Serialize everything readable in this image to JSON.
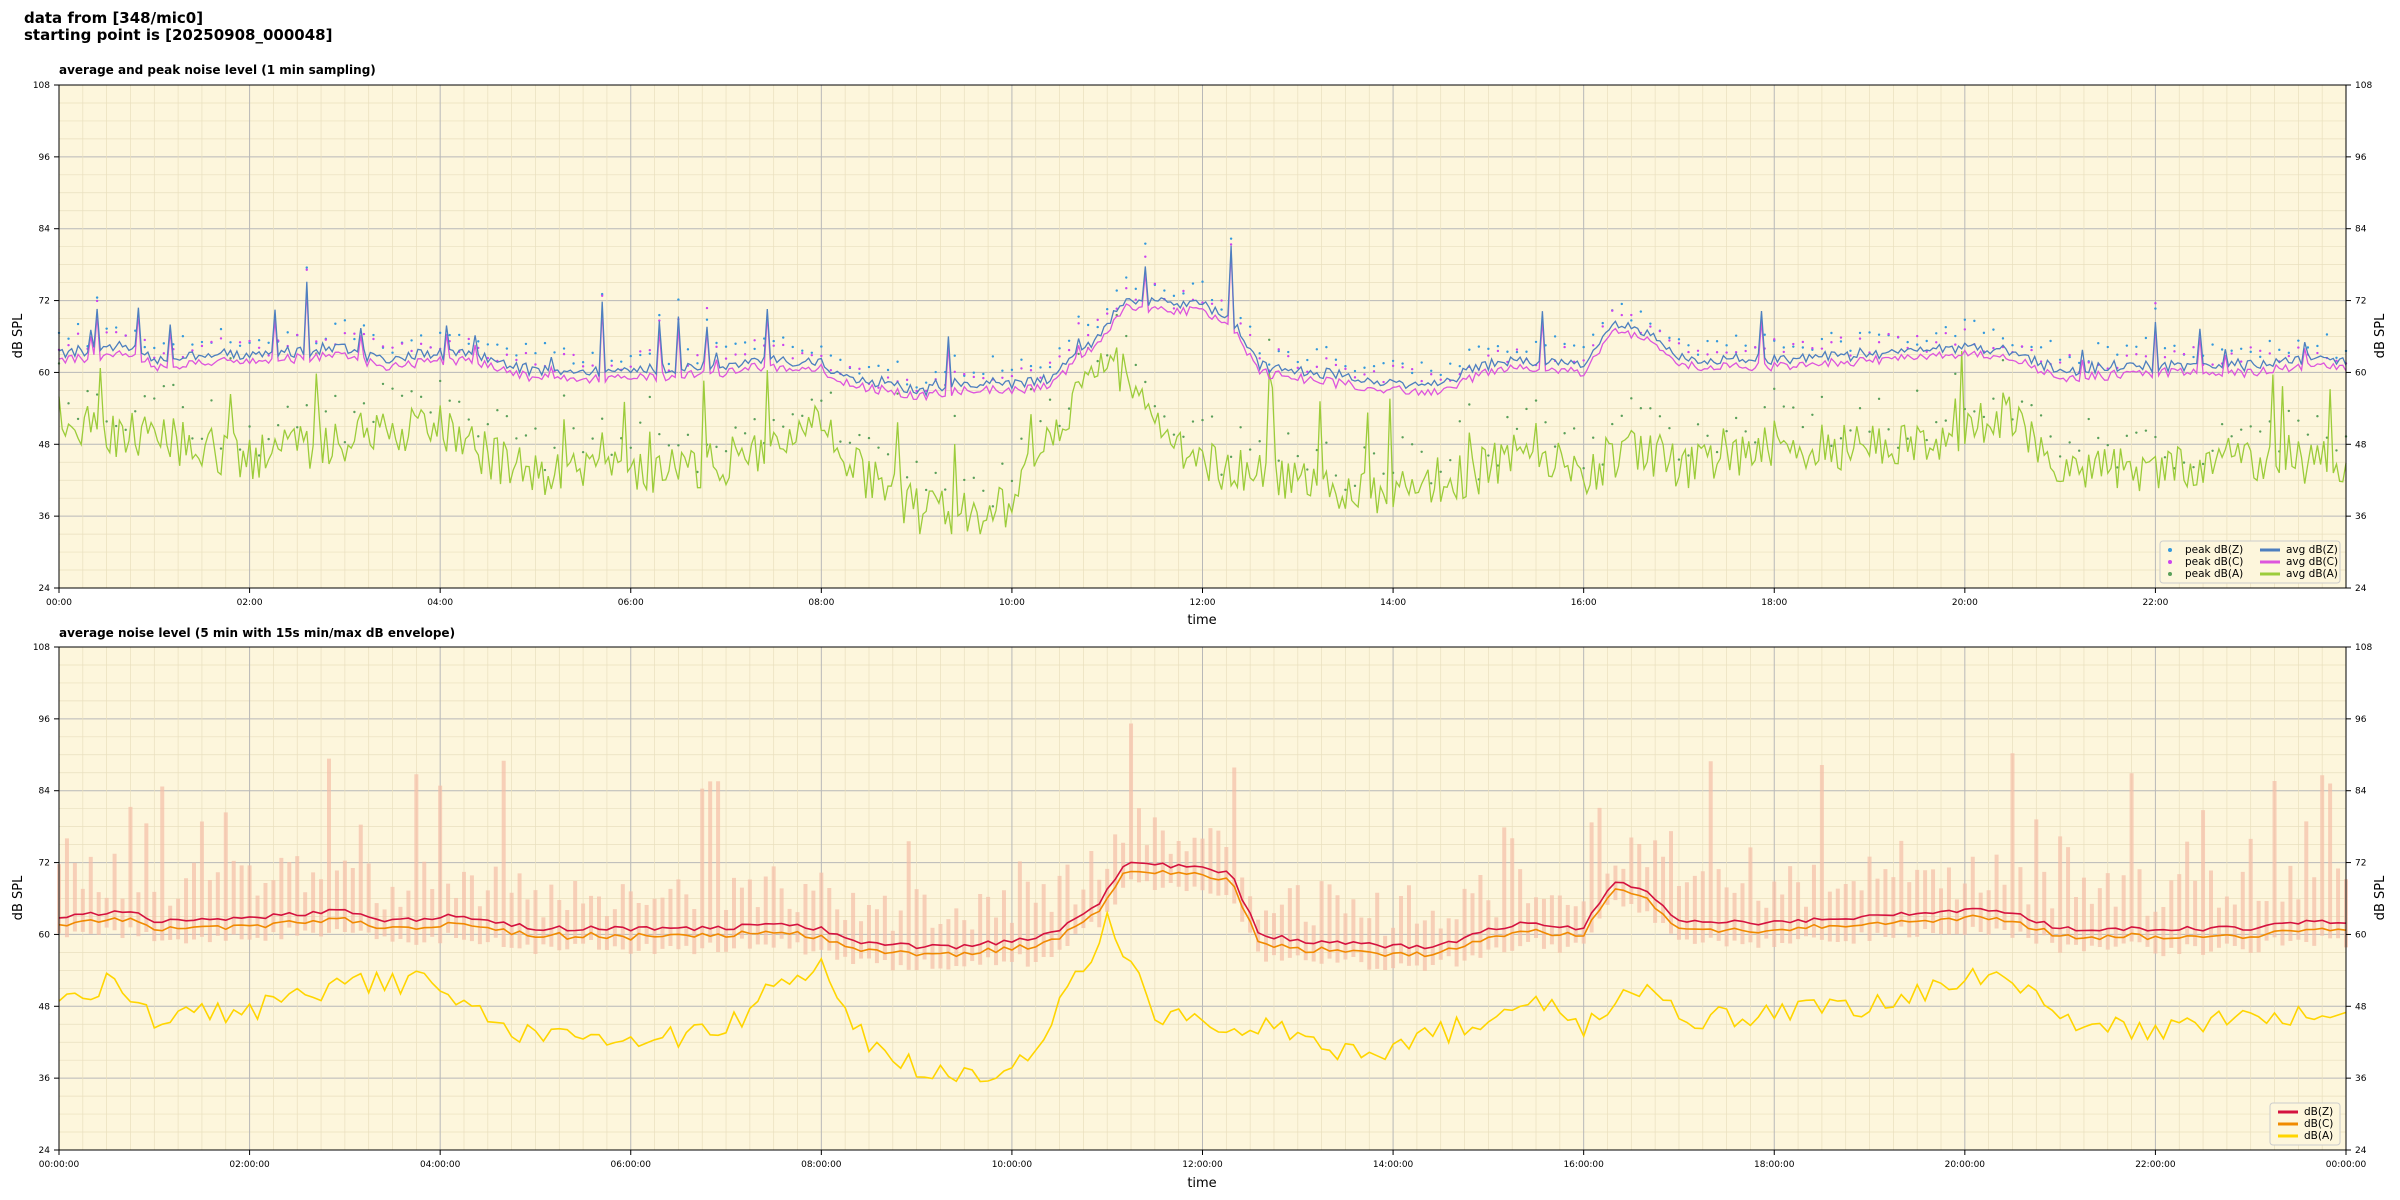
{
  "header": {
    "line1": "data from [348/mic0]",
    "line2": "starting point is [20250908_000048]"
  },
  "chart_data": [
    {
      "type": "line",
      "title": "average and peak noise level (1 min sampling)",
      "xlabel": "time",
      "ylabel": "dB SPL",
      "xlim_hours": [
        0,
        24
      ],
      "ylim": [
        24,
        108
      ],
      "yticks": [
        24,
        36,
        48,
        60,
        72,
        84,
        96,
        108
      ],
      "xtick_labels": [
        "00:00",
        "02:00",
        "04:00",
        "06:00",
        "08:00",
        "10:00",
        "12:00",
        "14:00",
        "16:00",
        "18:00",
        "20:00",
        "22:00"
      ],
      "grid": true,
      "legend_position": "bottom-right",
      "colors": {
        "background": "#fdf6dc",
        "Z": "#4d7fbf",
        "C": "#dd55dd",
        "A": "#9ccc3a",
        "peakZ": "#3399dd",
        "peakC": "#cc44ee",
        "peakA": "#5aa05a"
      },
      "series": [
        {
          "name": "avg dB(Z)",
          "kind": "line",
          "color": "#4d7fbf"
        },
        {
          "name": "avg dB(C)",
          "kind": "line",
          "color": "#dd55dd"
        },
        {
          "name": "avg dB(A)",
          "kind": "line",
          "color": "#9ccc3a"
        },
        {
          "name": "peak dB(Z)",
          "kind": "scatter",
          "color": "#3399dd"
        },
        {
          "name": "peak dB(C)",
          "kind": "scatter",
          "color": "#cc44ee"
        },
        {
          "name": "peak dB(A)",
          "kind": "scatter",
          "color": "#5aa05a"
        }
      ],
      "profile_c_hours": [
        0,
        0.8,
        1.0,
        2.0,
        2.2,
        3.0,
        3.4,
        4.0,
        4.3,
        5.0,
        6.0,
        7.0,
        7.4,
        8.0,
        8.3,
        9.0,
        9.5,
        10.0,
        10.4,
        10.9,
        11.2,
        12.0,
        12.3,
        12.6,
        13.0,
        14.0,
        14.5,
        15.0,
        15.5,
        16.0,
        16.3,
        16.7,
        17.0,
        18.0,
        19.0,
        20.0,
        20.4,
        21.0,
        22.0,
        23.0,
        23.5,
        24.0
      ],
      "profile_c_values": [
        62,
        63,
        61,
        62,
        62,
        63,
        61,
        62,
        62,
        59,
        59,
        60,
        61,
        60,
        58,
        56,
        57,
        57,
        58,
        65,
        71,
        70,
        68,
        60,
        59,
        57,
        57,
        60,
        61,
        60,
        67,
        66,
        61,
        61,
        62,
        63,
        63,
        59,
        60,
        60,
        61,
        61
      ],
      "profile_a_hours": [
        0,
        0.5,
        1.0,
        2.0,
        3.0,
        4.0,
        4.5,
        5.0,
        6.0,
        7.0,
        7.5,
        8.0,
        8.5,
        9.0,
        9.5,
        10.0,
        10.5,
        11.0,
        11.5,
        12.0,
        12.5,
        13.0,
        13.5,
        14.0,
        15.0,
        15.5,
        16.0,
        16.5,
        17.0,
        18.0,
        19.0,
        20.0,
        20.4,
        21.0,
        22.0,
        23.0,
        24.0
      ],
      "profile_a_values": [
        52,
        50,
        49,
        46,
        49,
        51,
        46,
        43,
        43,
        45,
        48,
        52,
        42,
        37,
        36,
        38,
        52,
        64,
        50,
        45,
        43,
        42,
        40,
        40,
        44,
        48,
        43,
        48,
        44,
        48,
        47,
        50,
        53,
        45,
        44,
        46,
        45
      ]
    },
    {
      "type": "line",
      "title": "average noise level (5 min with 15s min/max dB envelope)",
      "xlabel": "time",
      "ylabel": "dB SPL",
      "xlim_hours": [
        0,
        24
      ],
      "ylim": [
        24,
        108
      ],
      "yticks": [
        24,
        36,
        48,
        60,
        72,
        84,
        96,
        108
      ],
      "xtick_labels": [
        "00:00:00",
        "02:00:00",
        "04:00:00",
        "06:00:00",
        "08:00:00",
        "10:00:00",
        "12:00:00",
        "14:00:00",
        "16:00:00",
        "18:00:00",
        "20:00:00",
        "22:00:00",
        "00:00:00"
      ],
      "grid": true,
      "legend_position": "bottom-right",
      "colors": {
        "background": "#fdf6dc",
        "Z": "#d4123f",
        "C": "#f08a00",
        "A": "#ffd500",
        "envelope": "#f5bfa8"
      },
      "series": [
        {
          "name": "dB(Z)",
          "color": "#d4123f"
        },
        {
          "name": "dB(C)",
          "color": "#f08a00"
        },
        {
          "name": "dB(A)",
          "color": "#ffd500"
        }
      ],
      "profile_z_hours": [
        0,
        0.8,
        1.0,
        2.0,
        2.2,
        3.0,
        3.4,
        4.0,
        4.3,
        5.0,
        6.0,
        7.0,
        7.4,
        8.0,
        8.3,
        9.0,
        9.5,
        10.0,
        10.4,
        10.9,
        11.2,
        12.0,
        12.3,
        12.6,
        13.0,
        14.0,
        14.5,
        15.0,
        15.5,
        16.0,
        16.3,
        16.7,
        17.0,
        18.0,
        19.0,
        20.0,
        20.4,
        21.0,
        22.0,
        23.0,
        23.5,
        24.0
      ],
      "profile_z_values": [
        63,
        64,
        62,
        63,
        63,
        64,
        62,
        63,
        63,
        61,
        61,
        61,
        62,
        61,
        59,
        58,
        58,
        59,
        60,
        65,
        72,
        71,
        70,
        60,
        59,
        58,
        58,
        61,
        62,
        61,
        69,
        67,
        62,
        62,
        63,
        64,
        64,
        61,
        61,
        61,
        62,
        62
      ],
      "profile_a_hours": [
        0,
        0.5,
        1.0,
        2.0,
        3.0,
        4.0,
        4.5,
        5.0,
        6.0,
        7.0,
        7.5,
        8.0,
        8.5,
        9.0,
        9.5,
        10.0,
        10.5,
        11.0,
        11.5,
        12.0,
        12.5,
        13.0,
        13.5,
        14.0,
        15.0,
        15.5,
        16.0,
        16.5,
        17.0,
        18.0,
        19.0,
        20.0,
        20.4,
        21.0,
        22.0,
        23.0,
        24.0
      ],
      "profile_a_values": [
        49,
        52,
        46,
        47,
        52,
        52,
        46,
        43,
        42,
        44,
        51,
        54,
        41,
        38,
        36,
        37,
        48,
        62,
        47,
        46,
        45,
        43,
        40,
        41,
        46,
        50,
        45,
        52,
        46,
        47,
        48,
        52,
        54,
        45,
        44,
        46,
        48
      ]
    }
  ]
}
